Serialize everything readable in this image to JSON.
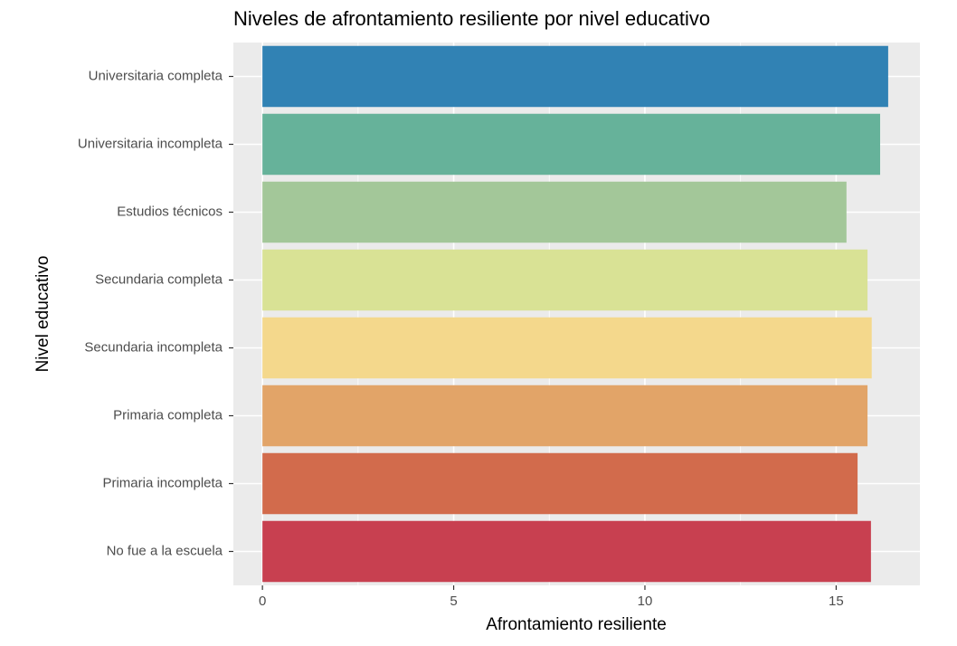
{
  "chart_data": {
    "type": "bar",
    "orientation": "horizontal",
    "title": "Niveles de afrontamiento resiliente por nivel educativo",
    "x_label": "Afrontamiento resiliente",
    "y_label": "Nivel educativo",
    "categories": [
      "Universitaria completa",
      "Universitaria incompleta",
      "Estudios técnicos",
      "Secundaria completa",
      "Secundaria incompleta",
      "Primaria completa",
      "Primaria incompleta",
      "No fue a la escuela"
    ],
    "values": [
      16.36,
      16.15,
      15.27,
      15.82,
      15.93,
      15.82,
      15.56,
      15.91
    ],
    "colors": [
      "#3182b4",
      "#66b29a",
      "#a3c799",
      "#d9e295",
      "#f4d88c",
      "#e2a468",
      "#d26b4c",
      "#c84050"
    ],
    "xlim": [
      -0.76,
      17.19
    ],
    "xticks": [
      0,
      5,
      10,
      15
    ],
    "x_minor_ticks": [
      2.5,
      7.5,
      12.5
    ],
    "grid": true
  }
}
